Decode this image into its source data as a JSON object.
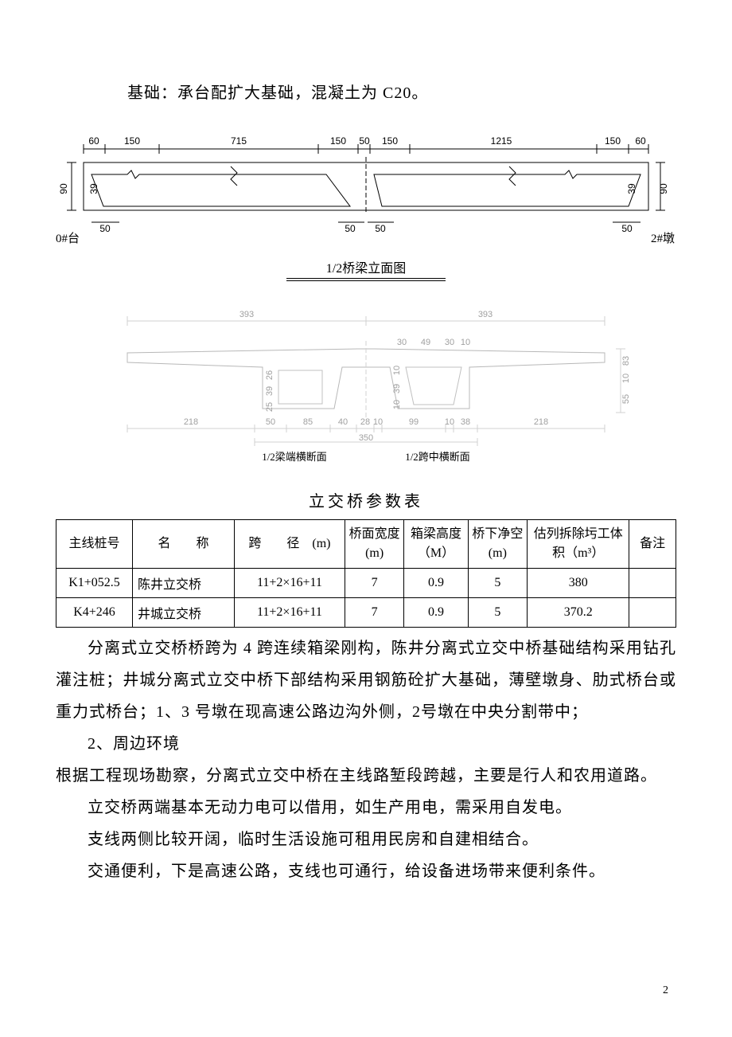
{
  "intro": "基础：承台配扩大基础，混凝土为 C20。",
  "elevation": {
    "top_dims": [
      "60",
      "150",
      "715",
      "150",
      "50",
      "150",
      "1215",
      "150",
      "60"
    ],
    "left_v": "90",
    "left_v_inner": "39",
    "right_v": "90",
    "right_v_inner": "39",
    "bottom_dims_left": "50",
    "bottom_dims_mid_l": "50",
    "bottom_dims_mid_r": "50",
    "bottom_dims_right": "50",
    "label_left": "0#台",
    "label_right": "2#墩",
    "caption": "1/2桥梁立面图"
  },
  "section": {
    "top_left": "393",
    "top_right": "393",
    "mid_small": [
      "30",
      "49",
      "30",
      "10"
    ],
    "left_inner_v": [
      "26",
      "39",
      "25"
    ],
    "right_inner_v": [
      "10",
      "39",
      "10"
    ],
    "right_outer_v": [
      "83",
      "10"
    ],
    "right_tall": "55",
    "bottom_dims": [
      "218",
      "50",
      "85",
      "40",
      "28",
      "10",
      "99",
      "10",
      "38",
      "218"
    ],
    "overall_width": "350",
    "caption_left": "1/2梁端横断面",
    "caption_right": "1/2跨中横断面"
  },
  "table": {
    "title": "立交桥参数表",
    "headers": {
      "c1": "主线桩号",
      "c2": "名　　称",
      "c3": "跨　　径　(m)",
      "c4": "桥面宽度(m)",
      "c5": "箱梁高度（M）",
      "c6": "桥下净空(m)",
      "c7": "估列拆除圬工体积（m³）",
      "c8": "备注"
    },
    "rows": [
      {
        "c1": "K1+052.5",
        "c2": "陈井立交桥",
        "c3": "11+2×16+11",
        "c4": "7",
        "c5": "0.9",
        "c6": "5",
        "c7": "380",
        "c8": ""
      },
      {
        "c1": "K4+246",
        "c2": "井城立交桥",
        "c3": "11+2×16+11",
        "c4": "7",
        "c5": "0.9",
        "c6": "5",
        "c7": "370.2",
        "c8": ""
      }
    ]
  },
  "paragraphs": [
    "分离式立交桥桥跨为 4 跨连续箱梁刚构，陈井分离式立交中桥基础结构采用钻孔灌注桩；井城分离式立交中桥下部结构采用钢筋砼扩大基础，薄壁墩身、肋式桥台或重力式桥台；1、3 号墩在现高速公路边沟外侧，2号墩在中央分割带中；",
    "2、周边环境",
    "根据工程现场勘察，分离式立交中桥在主线路堑段跨越，主要是行人和农用道路。",
    "立交桥两端基本无动力电可以借用，如生产用电，需采用自发电。",
    "支线两侧比较开阔，临时生活设施可租用民房和自建相结合。",
    "交通便利，下是高速公路，支线也可通行，给设备进场带来便利条件。"
  ],
  "page_number": "2",
  "colors": {
    "line": "#000000",
    "light_line": "#d0d0d0",
    "bg": "#ffffff"
  }
}
